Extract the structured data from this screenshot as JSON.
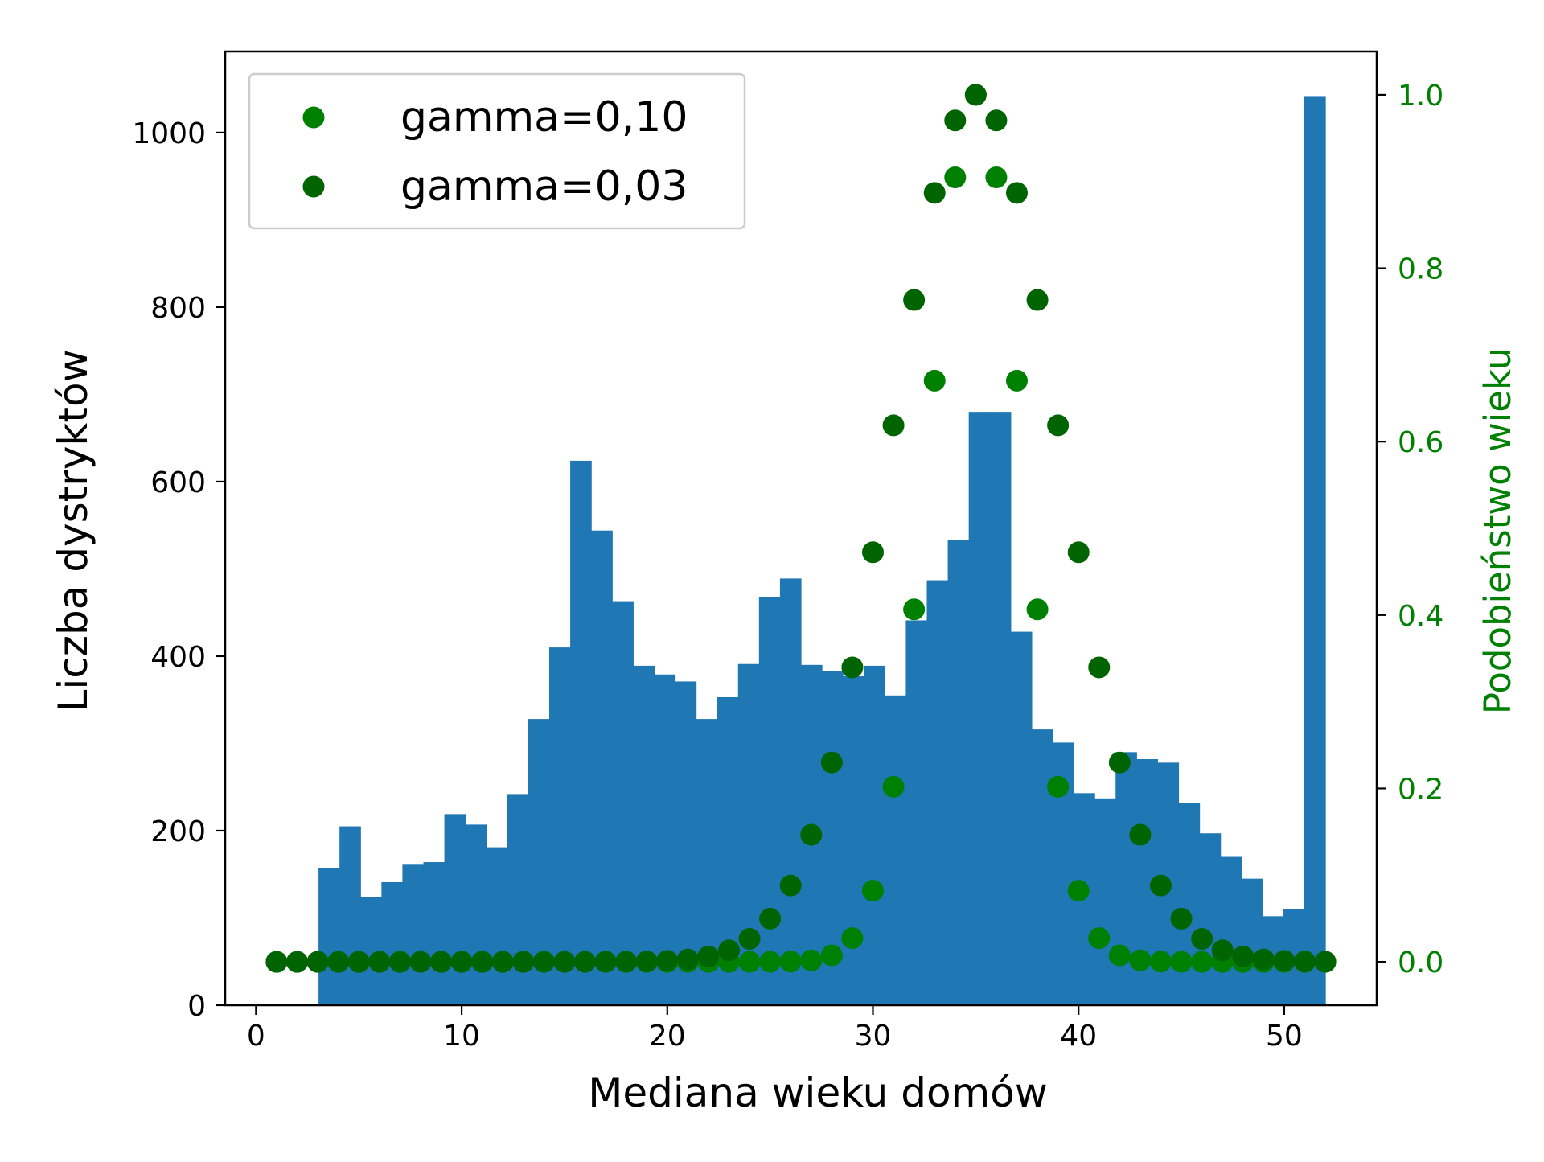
{
  "chart_data": {
    "type": "bar+scatter",
    "xlabel": "Mediana wieku domów",
    "ylabel": "Liczba dystryktów",
    "y2label": "Podobieństwo wieku",
    "xlim": [
      -1.5,
      54.5
    ],
    "ylim": [
      0,
      1093
    ],
    "y2lim": [
      -0.05,
      1.05
    ],
    "xticks": [
      0,
      10,
      20,
      30,
      40,
      50
    ],
    "yticks": [
      0,
      200,
      400,
      600,
      800,
      1000
    ],
    "y2ticks": [
      0.0,
      0.2,
      0.4,
      0.6,
      0.8,
      1.0
    ],
    "grid": false,
    "legend_position": "top-left",
    "histogram": {
      "bin_start": 1,
      "bin_end": 52,
      "counts": [
        0,
        0,
        157,
        205,
        124,
        141,
        161,
        164,
        219,
        207,
        181,
        242,
        328,
        410,
        624,
        544,
        463,
        389,
        379,
        371,
        328,
        353,
        391,
        468,
        489,
        390,
        383,
        377,
        389,
        355,
        441,
        487,
        533,
        680,
        680,
        428,
        316,
        301,
        243,
        237,
        290,
        282,
        278,
        232,
        197,
        170,
        145,
        102,
        110,
        1041
      ],
      "color": "#1f77b4"
    },
    "series": [
      {
        "name": "gamma=0,10",
        "color": "#008000",
        "gamma": 0.1,
        "center": 35,
        "x": [
          1,
          2,
          3,
          4,
          5,
          6,
          7,
          8,
          9,
          10,
          11,
          12,
          13,
          14,
          15,
          16,
          17,
          18,
          19,
          20,
          21,
          22,
          23,
          24,
          25,
          26,
          27,
          28,
          29,
          30,
          31,
          32,
          33,
          34,
          35,
          36,
          37,
          38,
          39,
          40,
          41,
          42,
          43,
          44,
          45,
          46,
          47,
          48,
          49,
          50,
          51,
          52
        ]
      },
      {
        "name": "gamma=0,03",
        "color": "#006400",
        "gamma": 0.03,
        "center": 35,
        "x": [
          1,
          2,
          3,
          4,
          5,
          6,
          7,
          8,
          9,
          10,
          11,
          12,
          13,
          14,
          15,
          16,
          17,
          18,
          19,
          20,
          21,
          22,
          23,
          24,
          25,
          26,
          27,
          28,
          29,
          30,
          31,
          32,
          33,
          34,
          35,
          36,
          37,
          38,
          39,
          40,
          41,
          42,
          43,
          44,
          45,
          46,
          47,
          48,
          49,
          50,
          51,
          52
        ]
      }
    ]
  }
}
